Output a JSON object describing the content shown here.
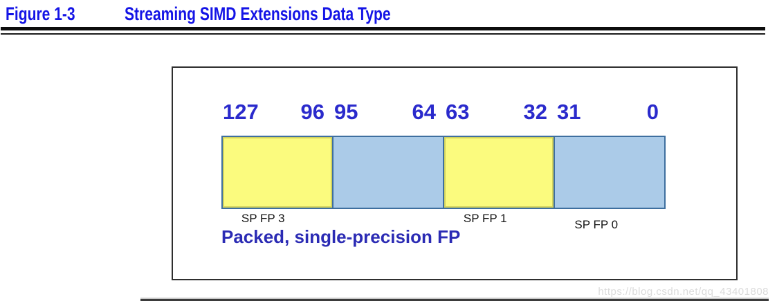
{
  "figure": {
    "label": "Figure 1-3",
    "title": "Streaming SIMD Extensions Data Type"
  },
  "register": {
    "cells": [
      {
        "left_bit": "127",
        "right_bit": "96",
        "label": "SP FP 3",
        "fill": "#FBFB7E"
      },
      {
        "left_bit": "95",
        "right_bit": "64",
        "label": "",
        "fill": "#ABCBE8"
      },
      {
        "left_bit": "63",
        "right_bit": "32",
        "label": "SP FP 1",
        "fill": "#FBFB7E"
      },
      {
        "left_bit": "31",
        "right_bit": "0",
        "label": "SP FP 0",
        "fill": "#ABCBE8"
      }
    ],
    "caption": "Packed, single-precision FP"
  },
  "watermark": "https://blog.csdn.net/qq_43401808",
  "colors": {
    "title_blue": "#1414E6",
    "bit_number_blue": "#2A2ACC",
    "caption_blue": "#2B2BB4",
    "cell_yellow": "#FBFB7E",
    "cell_blue": "#ABCBE8",
    "bar_border_blue": "#3E6F9F",
    "yellow_inner_border": "#D3D35E",
    "box_border": "#2E2E2E",
    "watermark_gray": "#DBDBDB"
  }
}
